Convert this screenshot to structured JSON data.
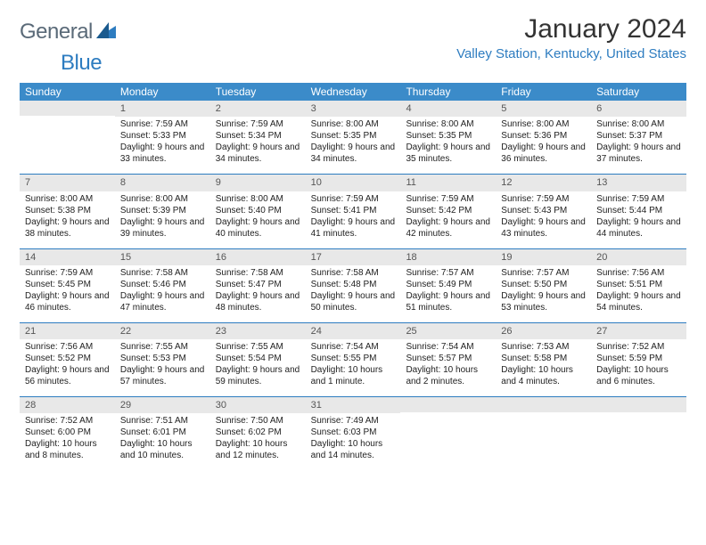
{
  "logo": {
    "text1": "General",
    "text2": "Blue"
  },
  "title": "January 2024",
  "location": "Valley Station, Kentucky, United States",
  "header_bg": "#3b8bc9",
  "accent": "#2d7cc0",
  "daynum_bg": "#e8e8e8",
  "weekdays": [
    "Sunday",
    "Monday",
    "Tuesday",
    "Wednesday",
    "Thursday",
    "Friday",
    "Saturday"
  ],
  "weeks": [
    [
      {
        "n": "",
        "sunrise": "",
        "sunset": "",
        "daylight": ""
      },
      {
        "n": "1",
        "sunrise": "Sunrise: 7:59 AM",
        "sunset": "Sunset: 5:33 PM",
        "daylight": "Daylight: 9 hours and 33 minutes."
      },
      {
        "n": "2",
        "sunrise": "Sunrise: 7:59 AM",
        "sunset": "Sunset: 5:34 PM",
        "daylight": "Daylight: 9 hours and 34 minutes."
      },
      {
        "n": "3",
        "sunrise": "Sunrise: 8:00 AM",
        "sunset": "Sunset: 5:35 PM",
        "daylight": "Daylight: 9 hours and 34 minutes."
      },
      {
        "n": "4",
        "sunrise": "Sunrise: 8:00 AM",
        "sunset": "Sunset: 5:35 PM",
        "daylight": "Daylight: 9 hours and 35 minutes."
      },
      {
        "n": "5",
        "sunrise": "Sunrise: 8:00 AM",
        "sunset": "Sunset: 5:36 PM",
        "daylight": "Daylight: 9 hours and 36 minutes."
      },
      {
        "n": "6",
        "sunrise": "Sunrise: 8:00 AM",
        "sunset": "Sunset: 5:37 PM",
        "daylight": "Daylight: 9 hours and 37 minutes."
      }
    ],
    [
      {
        "n": "7",
        "sunrise": "Sunrise: 8:00 AM",
        "sunset": "Sunset: 5:38 PM",
        "daylight": "Daylight: 9 hours and 38 minutes."
      },
      {
        "n": "8",
        "sunrise": "Sunrise: 8:00 AM",
        "sunset": "Sunset: 5:39 PM",
        "daylight": "Daylight: 9 hours and 39 minutes."
      },
      {
        "n": "9",
        "sunrise": "Sunrise: 8:00 AM",
        "sunset": "Sunset: 5:40 PM",
        "daylight": "Daylight: 9 hours and 40 minutes."
      },
      {
        "n": "10",
        "sunrise": "Sunrise: 7:59 AM",
        "sunset": "Sunset: 5:41 PM",
        "daylight": "Daylight: 9 hours and 41 minutes."
      },
      {
        "n": "11",
        "sunrise": "Sunrise: 7:59 AM",
        "sunset": "Sunset: 5:42 PM",
        "daylight": "Daylight: 9 hours and 42 minutes."
      },
      {
        "n": "12",
        "sunrise": "Sunrise: 7:59 AM",
        "sunset": "Sunset: 5:43 PM",
        "daylight": "Daylight: 9 hours and 43 minutes."
      },
      {
        "n": "13",
        "sunrise": "Sunrise: 7:59 AM",
        "sunset": "Sunset: 5:44 PM",
        "daylight": "Daylight: 9 hours and 44 minutes."
      }
    ],
    [
      {
        "n": "14",
        "sunrise": "Sunrise: 7:59 AM",
        "sunset": "Sunset: 5:45 PM",
        "daylight": "Daylight: 9 hours and 46 minutes."
      },
      {
        "n": "15",
        "sunrise": "Sunrise: 7:58 AM",
        "sunset": "Sunset: 5:46 PM",
        "daylight": "Daylight: 9 hours and 47 minutes."
      },
      {
        "n": "16",
        "sunrise": "Sunrise: 7:58 AM",
        "sunset": "Sunset: 5:47 PM",
        "daylight": "Daylight: 9 hours and 48 minutes."
      },
      {
        "n": "17",
        "sunrise": "Sunrise: 7:58 AM",
        "sunset": "Sunset: 5:48 PM",
        "daylight": "Daylight: 9 hours and 50 minutes."
      },
      {
        "n": "18",
        "sunrise": "Sunrise: 7:57 AM",
        "sunset": "Sunset: 5:49 PM",
        "daylight": "Daylight: 9 hours and 51 minutes."
      },
      {
        "n": "19",
        "sunrise": "Sunrise: 7:57 AM",
        "sunset": "Sunset: 5:50 PM",
        "daylight": "Daylight: 9 hours and 53 minutes."
      },
      {
        "n": "20",
        "sunrise": "Sunrise: 7:56 AM",
        "sunset": "Sunset: 5:51 PM",
        "daylight": "Daylight: 9 hours and 54 minutes."
      }
    ],
    [
      {
        "n": "21",
        "sunrise": "Sunrise: 7:56 AM",
        "sunset": "Sunset: 5:52 PM",
        "daylight": "Daylight: 9 hours and 56 minutes."
      },
      {
        "n": "22",
        "sunrise": "Sunrise: 7:55 AM",
        "sunset": "Sunset: 5:53 PM",
        "daylight": "Daylight: 9 hours and 57 minutes."
      },
      {
        "n": "23",
        "sunrise": "Sunrise: 7:55 AM",
        "sunset": "Sunset: 5:54 PM",
        "daylight": "Daylight: 9 hours and 59 minutes."
      },
      {
        "n": "24",
        "sunrise": "Sunrise: 7:54 AM",
        "sunset": "Sunset: 5:55 PM",
        "daylight": "Daylight: 10 hours and 1 minute."
      },
      {
        "n": "25",
        "sunrise": "Sunrise: 7:54 AM",
        "sunset": "Sunset: 5:57 PM",
        "daylight": "Daylight: 10 hours and 2 minutes."
      },
      {
        "n": "26",
        "sunrise": "Sunrise: 7:53 AM",
        "sunset": "Sunset: 5:58 PM",
        "daylight": "Daylight: 10 hours and 4 minutes."
      },
      {
        "n": "27",
        "sunrise": "Sunrise: 7:52 AM",
        "sunset": "Sunset: 5:59 PM",
        "daylight": "Daylight: 10 hours and 6 minutes."
      }
    ],
    [
      {
        "n": "28",
        "sunrise": "Sunrise: 7:52 AM",
        "sunset": "Sunset: 6:00 PM",
        "daylight": "Daylight: 10 hours and 8 minutes."
      },
      {
        "n": "29",
        "sunrise": "Sunrise: 7:51 AM",
        "sunset": "Sunset: 6:01 PM",
        "daylight": "Daylight: 10 hours and 10 minutes."
      },
      {
        "n": "30",
        "sunrise": "Sunrise: 7:50 AM",
        "sunset": "Sunset: 6:02 PM",
        "daylight": "Daylight: 10 hours and 12 minutes."
      },
      {
        "n": "31",
        "sunrise": "Sunrise: 7:49 AM",
        "sunset": "Sunset: 6:03 PM",
        "daylight": "Daylight: 10 hours and 14 minutes."
      },
      {
        "n": "",
        "sunrise": "",
        "sunset": "",
        "daylight": ""
      },
      {
        "n": "",
        "sunrise": "",
        "sunset": "",
        "daylight": ""
      },
      {
        "n": "",
        "sunrise": "",
        "sunset": "",
        "daylight": ""
      }
    ]
  ]
}
